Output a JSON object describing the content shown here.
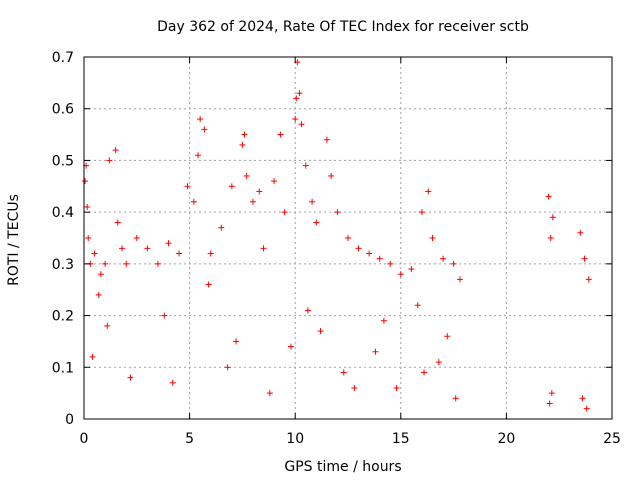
{
  "chart_data": {
    "type": "scatter",
    "title": "Day 362 of 2024, Rate Of TEC Index for receiver sctb",
    "xlabel": "GPS time / hours",
    "ylabel": "ROTI / TECUs",
    "xlim": [
      0,
      25
    ],
    "ylim": [
      0,
      0.7
    ],
    "xticks": [
      0,
      5,
      10,
      15,
      20,
      25
    ],
    "yticks": [
      0,
      0.1,
      0.2,
      0.3,
      0.4,
      0.5,
      0.6,
      0.7
    ],
    "xtick_labels": [
      "0",
      "5",
      "10",
      "15",
      "20",
      "25"
    ],
    "ytick_labels": [
      "0",
      "0.1",
      "0.2",
      "0.3",
      "0.4",
      "0.5",
      "0.6",
      "0.7"
    ],
    "grid": true,
    "marker": "plus",
    "color": "#ff0000",
    "x": [
      0.05,
      0.1,
      0.15,
      0.2,
      0.3,
      0.5,
      0.8,
      1.0,
      1.2,
      1.5,
      1.6,
      1.8,
      2.0,
      2.5,
      3.0,
      3.5,
      4.0,
      4.5,
      4.9,
      5.2,
      5.4,
      5.5,
      5.7,
      6.0,
      6.5,
      7.0,
      7.5,
      7.6,
      7.7,
      8.0,
      8.3,
      8.5,
      9.0,
      9.3,
      9.5,
      10.0,
      10.05,
      10.1,
      10.2,
      10.3,
      10.5,
      10.8,
      11.0,
      11.5,
      11.7,
      12.0,
      12.5,
      13.0,
      13.5,
      14.0,
      14.5,
      15.0,
      15.5,
      16.0,
      16.3,
      16.5,
      17.0,
      17.5,
      17.8,
      22.0,
      22.1,
      22.2,
      23.5,
      23.7,
      23.9,
      0.4,
      2.2,
      6.8,
      9.8,
      12.3,
      14.8,
      16.8,
      22.15,
      23.6,
      1.1,
      3.8,
      7.2,
      11.2,
      13.8,
      15.8,
      17.2,
      0.7,
      4.2,
      8.8,
      12.8,
      16.1,
      17.6,
      22.05,
      23.8,
      5.9,
      10.6,
      14.2
    ],
    "y": [
      0.46,
      0.49,
      0.41,
      0.35,
      0.3,
      0.32,
      0.28,
      0.3,
      0.5,
      0.52,
      0.38,
      0.33,
      0.3,
      0.35,
      0.33,
      0.3,
      0.34,
      0.32,
      0.45,
      0.42,
      0.51,
      0.58,
      0.56,
      0.32,
      0.37,
      0.45,
      0.53,
      0.55,
      0.47,
      0.42,
      0.44,
      0.33,
      0.46,
      0.55,
      0.4,
      0.58,
      0.62,
      0.69,
      0.63,
      0.57,
      0.49,
      0.42,
      0.38,
      0.54,
      0.47,
      0.4,
      0.35,
      0.33,
      0.32,
      0.31,
      0.3,
      0.28,
      0.29,
      0.4,
      0.44,
      0.35,
      0.31,
      0.3,
      0.27,
      0.43,
      0.35,
      0.39,
      0.36,
      0.31,
      0.27,
      0.12,
      0.08,
      0.1,
      0.14,
      0.09,
      0.06,
      0.11,
      0.05,
      0.04,
      0.18,
      0.2,
      0.15,
      0.17,
      0.13,
      0.22,
      0.16,
      0.24,
      0.07,
      0.05,
      0.06,
      0.09,
      0.04,
      0.03,
      0.02,
      0.26,
      0.21,
      0.19
    ]
  }
}
